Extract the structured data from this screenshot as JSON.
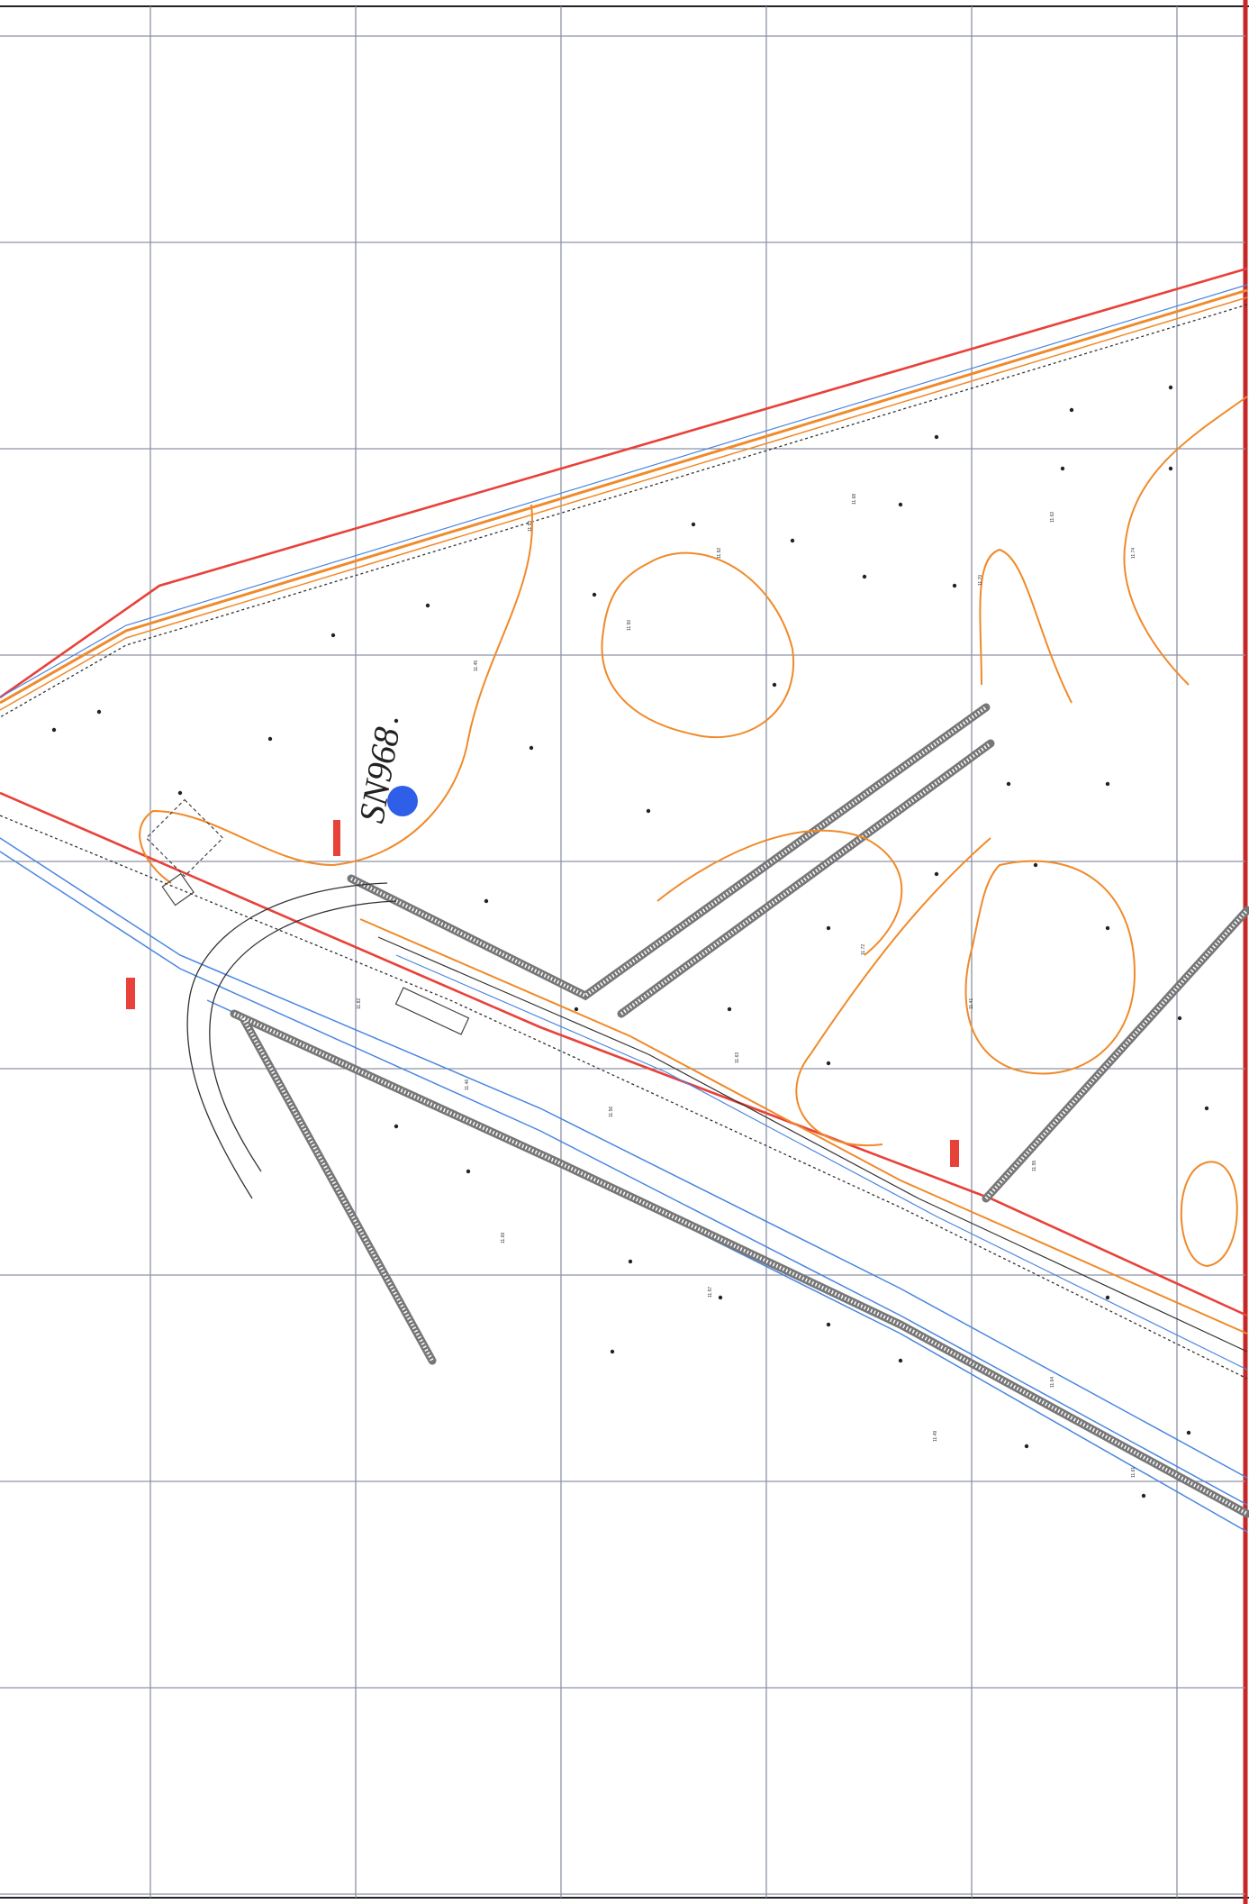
{
  "map": {
    "colors": {
      "paper": "#ffffff",
      "grid": "#8d93a4",
      "border": "#222222",
      "boundary": "#e8413a",
      "contour": "#f08a2a",
      "water": "#4a86e0",
      "road": "#333333",
      "embankment": "#888888",
      "marker": "#2f5fe8"
    },
    "point": {
      "label": "SN968",
      "icon": "blue-dot"
    },
    "elevations": [
      "11.45",
      "11.53",
      "11.50",
      "11.92",
      "11.68",
      "11.70",
      "11.62",
      "11.74",
      "11.82",
      "11.46",
      "11.56",
      "11.63",
      "11.72",
      "11.41",
      "11.55",
      "11.69",
      "11.57",
      "11.49",
      "11.64",
      "11.61"
    ]
  }
}
